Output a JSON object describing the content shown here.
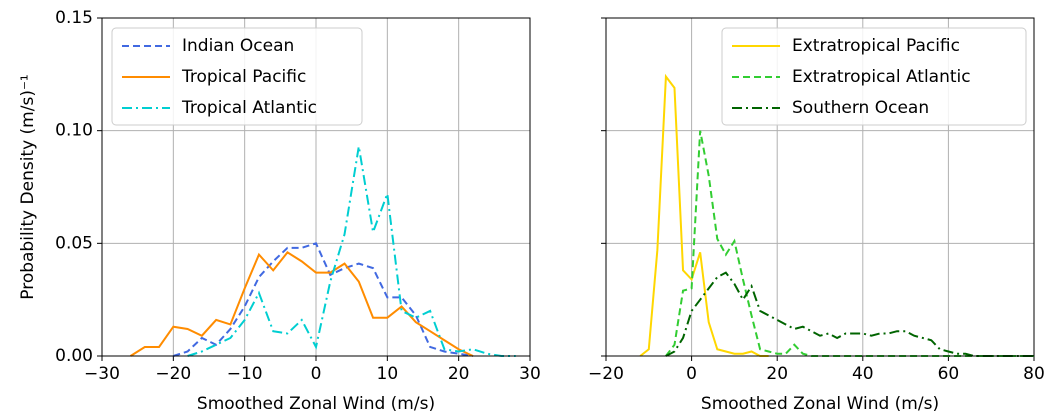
{
  "chart_data": [
    {
      "type": "line",
      "xlabel": "Smoothed Zonal Wind (m/s)",
      "ylabel": "Probability Density (m/s)⁻¹",
      "x": [
        -26,
        -24,
        -22,
        -20,
        -18,
        -16,
        -14,
        -12,
        -10,
        -8,
        -6,
        -4,
        -2,
        0,
        2,
        4,
        6,
        8,
        10,
        12,
        14,
        16,
        18,
        20,
        22,
        24,
        26,
        28
      ],
      "series": [
        {
          "name": "Indian Ocean",
          "color": "#4169e1",
          "linestyle": "dashed",
          "values": [
            null,
            null,
            null,
            0,
            0.002,
            0.008,
            0.005,
            0.012,
            0.022,
            0.035,
            0.042,
            0.048,
            0.048,
            0.05,
            0.036,
            0.039,
            0.041,
            0.039,
            0.026,
            0.026,
            0.018,
            0.004,
            0.002,
            0.001,
            0,
            null,
            null,
            null
          ]
        },
        {
          "name": "Tropical Pacific",
          "color": "#ff8c00",
          "linestyle": "solid",
          "values": [
            0,
            0.004,
            0.004,
            0.013,
            0.012,
            0.009,
            0.016,
            0.014,
            0.03,
            0.045,
            0.038,
            0.046,
            0.042,
            0.037,
            0.037,
            0.041,
            0.033,
            0.017,
            0.017,
            0.022,
            0.015,
            0.011,
            0.007,
            0.003,
            0,
            null,
            null,
            null
          ]
        },
        {
          "name": "Tropical Atlantic",
          "color": "#00ced1",
          "linestyle": "dashdot",
          "values": [
            null,
            null,
            null,
            null,
            0,
            0.002,
            0.005,
            0.008,
            0.016,
            0.028,
            0.011,
            0.01,
            0.016,
            0.004,
            0.033,
            0.054,
            0.093,
            0.055,
            0.072,
            0.02,
            0.017,
            0.02,
            0.003,
            0.002,
            0.003,
            0.001,
            0,
            0
          ]
        }
      ],
      "xlim": [
        -30,
        30
      ],
      "xticks": [
        {
          "value": -30,
          "label": "−30"
        },
        {
          "value": -20,
          "label": "−20"
        },
        {
          "value": -10,
          "label": "−10"
        },
        0,
        10,
        20,
        30
      ],
      "ylim": [
        0,
        0.15
      ],
      "yticks": [
        {
          "value": 0,
          "label": "0.00"
        },
        {
          "value": 0.05,
          "label": "0.05"
        },
        {
          "value": 0.1,
          "label": "0.10"
        },
        {
          "value": 0.15,
          "label": "0.15"
        }
      ],
      "grid": true,
      "legend": "upper-left"
    },
    {
      "type": "line",
      "xlabel": "Smoothed Zonal Wind (m/s)",
      "x": [
        -12,
        -10,
        -8,
        -6,
        -4,
        -2,
        0,
        2,
        4,
        6,
        8,
        10,
        12,
        14,
        16,
        18,
        20,
        22,
        24,
        26,
        28,
        30,
        32,
        34,
        36,
        38,
        40,
        42,
        44,
        46,
        48,
        50,
        52,
        54,
        56,
        58,
        60,
        62,
        64,
        66,
        68,
        70,
        72,
        74,
        76,
        78,
        80
      ],
      "series": [
        {
          "name": "Extratropical Pacific",
          "color": "#ffd700",
          "linestyle": "solid",
          "values": [
            0,
            0.003,
            0.047,
            0.124,
            0.119,
            0.038,
            0.034,
            0.046,
            0.015,
            0.003,
            0.002,
            0.001,
            0.001,
            0.002,
            0,
            0,
            null,
            null,
            null,
            null,
            null,
            null,
            null,
            null,
            null,
            null,
            null,
            null,
            null,
            null,
            null,
            null,
            null,
            null,
            null,
            null,
            null,
            null,
            null,
            null,
            null,
            null,
            null,
            null,
            null,
            null,
            null
          ]
        },
        {
          "name": "Extratropical Atlantic",
          "color": "#32cd32",
          "linestyle": "dashed",
          "values": [
            null,
            null,
            null,
            0,
            0.005,
            0.029,
            0.03,
            0.1,
            0.08,
            0.052,
            0.045,
            0.051,
            0.034,
            0.018,
            0.003,
            0.002,
            0.001,
            0.001,
            0.005,
            0.001,
            0,
            0,
            0,
            0,
            0,
            0,
            0,
            0,
            0,
            0,
            0,
            0,
            0,
            0,
            0,
            0,
            0,
            0,
            0,
            0,
            0,
            0,
            0,
            0,
            0,
            0,
            0
          ]
        },
        {
          "name": "Southern Ocean",
          "color": "#006400",
          "linestyle": "dashdot",
          "values": [
            null,
            null,
            null,
            0,
            0.002,
            0.008,
            0.02,
            0.025,
            0.03,
            0.035,
            0.037,
            0.032,
            0.025,
            0.031,
            0.02,
            0.018,
            0.016,
            0.014,
            0.012,
            0.013,
            0.011,
            0.009,
            0.01,
            0.008,
            0.01,
            0.01,
            0.01,
            0.009,
            0.01,
            0.01,
            0.011,
            0.011,
            0.009,
            0.008,
            0.007,
            0.003,
            0.002,
            0.001,
            0.001,
            0,
            0,
            0,
            0,
            0,
            0,
            0,
            0
          ]
        }
      ],
      "xlim": [
        -20,
        80
      ],
      "xticks": [
        {
          "value": -20,
          "label": "−20"
        },
        0,
        20,
        40,
        60,
        80
      ],
      "ylim": [
        0,
        0.15
      ],
      "yticks": [
        0,
        0.05,
        0.1,
        0.15
      ],
      "show_ytick_labels": false,
      "grid": true,
      "legend": "upper-right"
    }
  ]
}
